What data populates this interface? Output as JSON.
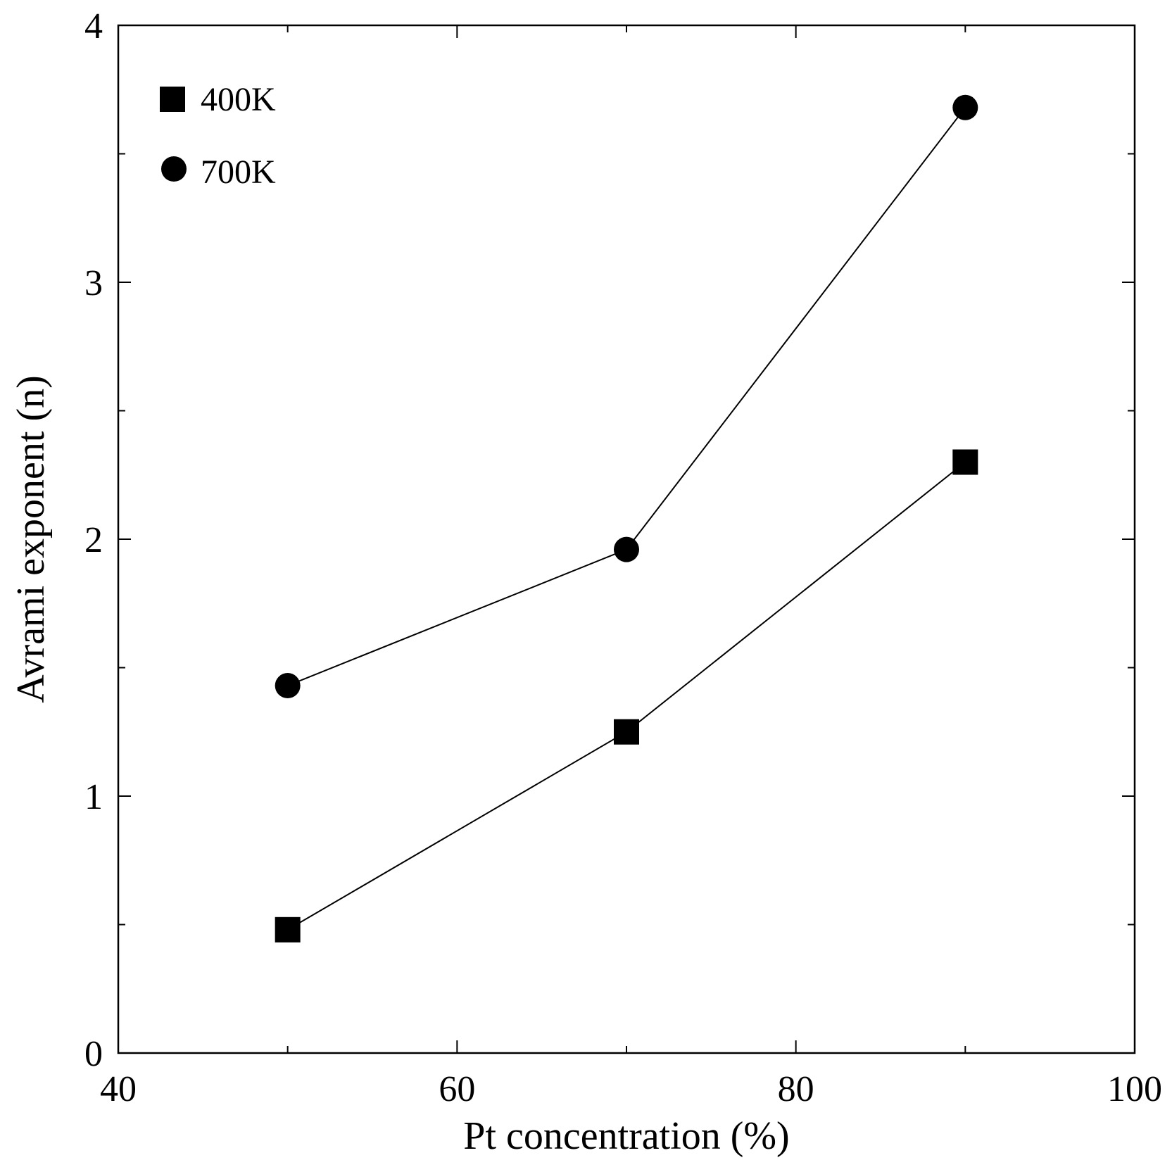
{
  "chart_data": {
    "type": "line",
    "title": "",
    "xlabel": "Pt concentration (%)",
    "ylabel": "Avrami exponent (n)",
    "xlim": [
      40,
      100
    ],
    "ylim": [
      0,
      4
    ],
    "x_ticks": [
      40,
      60,
      80,
      100
    ],
    "x_tick_labels": [
      "40",
      "60",
      "80",
      "100"
    ],
    "x_minor_step": 10,
    "y_ticks": [
      0,
      1,
      2,
      3,
      4
    ],
    "y_tick_labels": [
      "0",
      "1",
      "2",
      "3",
      "4"
    ],
    "y_minor_step": 0.5,
    "grid": false,
    "legend_position": "top-left",
    "series": [
      {
        "name": "400K",
        "marker": "square",
        "x": [
          50,
          70,
          90
        ],
        "values": [
          0.48,
          1.25,
          2.3
        ]
      },
      {
        "name": "700K",
        "marker": "circle",
        "x": [
          50,
          70,
          90
        ],
        "values": [
          1.43,
          1.96,
          3.68
        ]
      }
    ],
    "colors": {
      "line": "#000000",
      "marker": "#000000",
      "background": "#ffffff"
    }
  }
}
